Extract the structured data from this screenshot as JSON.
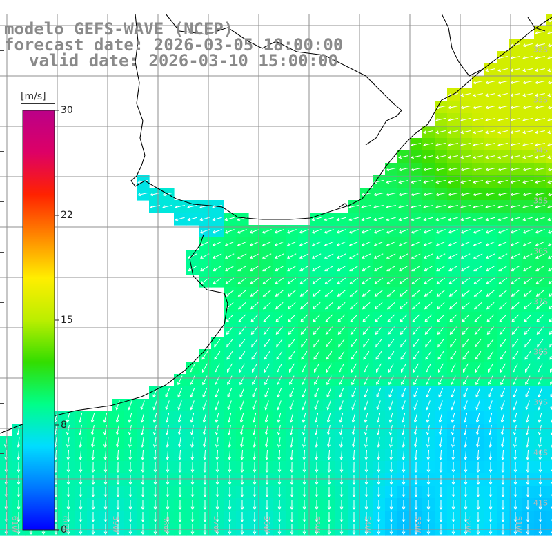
{
  "title": {
    "model": "modelo GEFS-WAVE (NCEP)",
    "forecast": "forecast date: 2026-03-05 18:00:00",
    "valid": "valid date: 2026-03-10 15:00:00"
  },
  "colorbar": {
    "unit": "[m/s]",
    "min": 0,
    "max": 30,
    "ticks": [
      "30",
      "22",
      "15",
      "8",
      "0"
    ],
    "colors": [
      "#0000ff",
      "#0077ff",
      "#00ddff",
      "#00ff88",
      "#33dd00",
      "#bbee00",
      "#ffee00",
      "#ff8800",
      "#ff2200",
      "#dd0066",
      "#bb0088"
    ]
  },
  "lat_labels": [
    "32S",
    "33S",
    "34S",
    "35S",
    "36S",
    "37S",
    "38S",
    "39S",
    "40S",
    "41S"
  ],
  "lon_labels": [
    "61W",
    "60W",
    "59W",
    "58W",
    "57W",
    "56W",
    "55W",
    "54W",
    "53W",
    "52W",
    "51W"
  ],
  "chart_data": {
    "type": "heatmap",
    "title": "modelo GEFS-WAVE (NCEP)",
    "unit": "m/s",
    "xlabel": "",
    "ylabel": "",
    "lon_range": [
      -61,
      -50
    ],
    "lat_range": [
      -41,
      -30.8
    ],
    "wind_speed_approx": {
      "northeast_coast_32S_34S": 13,
      "open_ocean_35S_36S": 10,
      "south_east_38S_40S": 6,
      "river_plate_estuary": 6,
      "south_west_39S_41S": 8
    },
    "wind_direction": "arrows point west-southwest in the north, turning to southward (north wind pattern) in the south"
  }
}
